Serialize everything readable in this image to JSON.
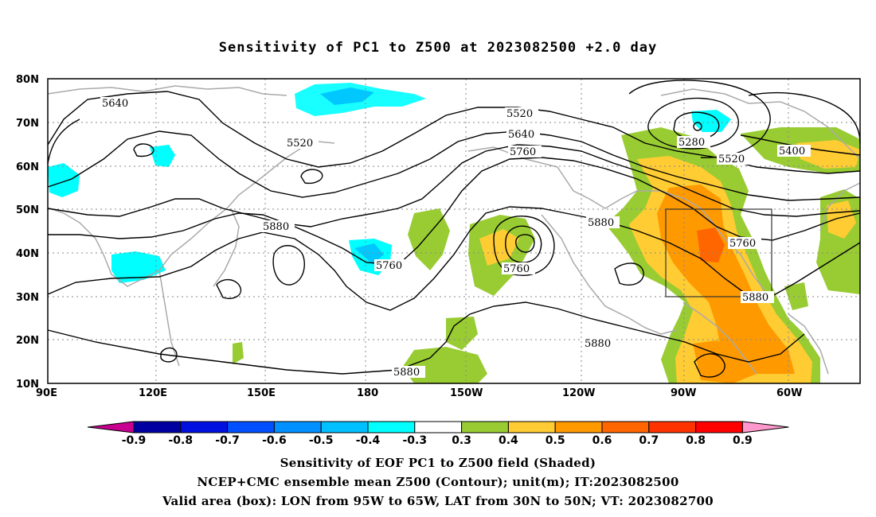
{
  "title": "Sensitivity of PC1 to Z500 at 2023082500 +2.0 day",
  "map": {
    "lat_labels": [
      "80N",
      "70N",
      "60N",
      "50N",
      "40N",
      "30N",
      "20N",
      "10N"
    ],
    "lon_labels": [
      "90E",
      "120E",
      "150E",
      "180",
      "150W",
      "120W",
      "90W",
      "60W"
    ],
    "contour_labels": [
      "5640",
      "5520",
      "5520",
      "5640",
      "5760",
      "5280",
      "5520",
      "5400",
      "5880",
      "5760",
      "5760",
      "5760",
      "5880",
      "5880",
      "5880",
      "5880"
    ],
    "box_label": "Valid area box"
  },
  "colorbar": {
    "labels": [
      "-0.9",
      "-0.8",
      "-0.7",
      "-0.6",
      "-0.5",
      "-0.4",
      "-0.3",
      "0.3",
      "0.4",
      "0.5",
      "0.6",
      "0.7",
      "0.8",
      "0.9"
    ],
    "colors": [
      "#c80090",
      "#0000a0",
      "#0010e0",
      "#0050ff",
      "#0090ff",
      "#00c0ff",
      "#00ffff",
      "#ffffff",
      "#99cc33",
      "#ffcc33",
      "#ff9900",
      "#ff6600",
      "#ff3300",
      "#ff0000",
      "#ff99cc"
    ]
  },
  "captions": {
    "line1": "Sensitivity of EOF PC1 to Z500 field (Shaded)",
    "line2": "NCEP+CMC ensemble mean Z500 (Contour); unit(m); IT:2023082500",
    "line3": "Valid area (box): LON from 95W to 65W, LAT from 30N to 50N; VT: 2023082700"
  },
  "chart_data": {
    "type": "heatmap",
    "title": "Sensitivity of PC1 to Z500 at 2023082500 +2.0 day",
    "field_shaded": "Sensitivity of EOF PC1 to Z500 field",
    "field_contour": "NCEP+CMC ensemble mean Z500",
    "unit": "m",
    "lat_range": [
      "10N",
      "80N"
    ],
    "lon_range": [
      "90E",
      "50W"
    ],
    "colorbar_levels": [
      -0.9,
      -0.8,
      -0.7,
      -0.6,
      -0.5,
      -0.4,
      -0.3,
      0.3,
      0.4,
      0.5,
      0.6,
      0.7,
      0.8,
      0.9
    ],
    "valid_box": {
      "lon": [
        "95W",
        "65W"
      ],
      "lat": [
        "30N",
        "50N"
      ]
    }
  }
}
